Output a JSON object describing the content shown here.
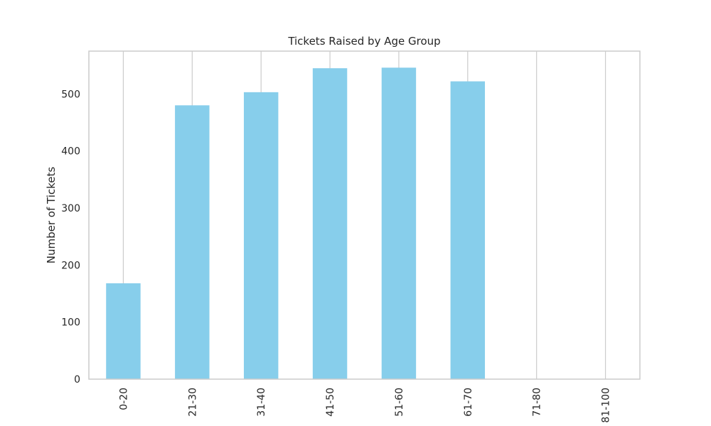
{
  "chart_data": {
    "type": "bar",
    "title": "Tickets Raised by Age Group",
    "xlabel": "",
    "ylabel": "Number of Tickets",
    "categories": [
      "0-20",
      "21-30",
      "31-40",
      "41-50",
      "51-60",
      "61-70",
      "71-80",
      "81-100"
    ],
    "values": [
      168,
      480,
      503,
      545,
      546,
      522,
      0,
      0
    ],
    "ylim": [
      0,
      575
    ],
    "yticks": [
      0,
      100,
      200,
      300,
      400,
      500
    ],
    "grid": "vertical",
    "legend": "none",
    "colors": {
      "bar": "#87ceeb",
      "grid": "#cccccc",
      "frame": "#cccccc",
      "text": "#262626"
    }
  }
}
